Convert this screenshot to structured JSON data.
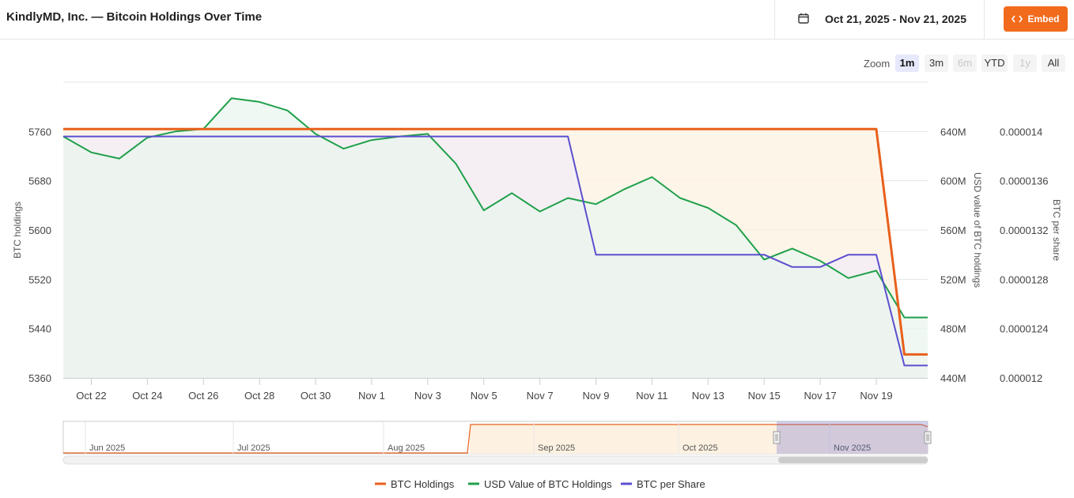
{
  "header": {
    "title": "KindlyMD, Inc. — Bitcoin Holdings Over Time",
    "date_range": "Oct 21, 2025 - Nov 21, 2025",
    "embed_label": "Embed",
    "calendar_icon": "calendar-icon",
    "embed_icon": "code-icon",
    "accent_color": "#f26a1b"
  },
  "zoom": {
    "label": "Zoom",
    "buttons": [
      {
        "label": "1m",
        "active": true,
        "disabled": false
      },
      {
        "label": "3m",
        "active": false,
        "disabled": false
      },
      {
        "label": "6m",
        "active": false,
        "disabled": true
      },
      {
        "label": "YTD",
        "active": false,
        "disabled": false
      },
      {
        "label": "1y",
        "active": false,
        "disabled": true
      },
      {
        "label": "All",
        "active": false,
        "disabled": false
      }
    ]
  },
  "chart_data": {
    "type": "line",
    "x": [
      "Oct 21",
      "Oct 22",
      "Oct 23",
      "Oct 24",
      "Oct 25",
      "Oct 26",
      "Oct 27",
      "Oct 28",
      "Oct 29",
      "Oct 30",
      "Oct 31",
      "Nov 1",
      "Nov 2",
      "Nov 3",
      "Nov 4",
      "Nov 5",
      "Nov 6",
      "Nov 7",
      "Nov 8",
      "Nov 9",
      "Nov 10",
      "Nov 11",
      "Nov 12",
      "Nov 13",
      "Nov 14",
      "Nov 15",
      "Nov 16",
      "Nov 17",
      "Nov 18",
      "Nov 19",
      "Nov 20",
      "Nov 21"
    ],
    "x_ticks": [
      "Oct 22",
      "Oct 24",
      "Oct 26",
      "Oct 28",
      "Oct 30",
      "Nov 1",
      "Nov 3",
      "Nov 5",
      "Nov 7",
      "Nov 9",
      "Nov 11",
      "Nov 13",
      "Nov 15",
      "Nov 17",
      "Nov 19"
    ],
    "series": [
      {
        "name": "BTC Holdings",
        "axis": "left",
        "color": "#e8601c",
        "fill": "#fdf1e1",
        "values": [
          5764,
          5764,
          5764,
          5764,
          5764,
          5764,
          5764,
          5764,
          5764,
          5764,
          5764,
          5764,
          5764,
          5764,
          5764,
          5764,
          5764,
          5764,
          5764,
          5764,
          5764,
          5764,
          5764,
          5764,
          5764,
          5764,
          5764,
          5764,
          5764,
          5764,
          5398,
          5398
        ]
      },
      {
        "name": "USD Value of BTC Holdings",
        "axis": "right1",
        "color": "#1fa04a",
        "fill": "#e9f6ee",
        "values": [
          636,
          623,
          618,
          635,
          640,
          642,
          667,
          664,
          657,
          638,
          626,
          633,
          636,
          638,
          614,
          576,
          590,
          575,
          586,
          581,
          593,
          603,
          586,
          578,
          564,
          536,
          545,
          535,
          521,
          527,
          489,
          489
        ]
      },
      {
        "name": "BTC per Share",
        "axis": "right2",
        "color": "#5b4fcf",
        "fill": "#f2ecf7",
        "values": [
          1.396e-05,
          1.396e-05,
          1.396e-05,
          1.396e-05,
          1.396e-05,
          1.396e-05,
          1.396e-05,
          1.396e-05,
          1.396e-05,
          1.396e-05,
          1.396e-05,
          1.396e-05,
          1.396e-05,
          1.396e-05,
          1.396e-05,
          1.396e-05,
          1.396e-05,
          1.396e-05,
          1.396e-05,
          1.3e-05,
          1.3e-05,
          1.3e-05,
          1.3e-05,
          1.3e-05,
          1.3e-05,
          1.3e-05,
          1.29e-05,
          1.29e-05,
          1.3e-05,
          1.3e-05,
          1.21e-05,
          1.21e-05
        ]
      }
    ],
    "y_left": {
      "label": "BTC holdings",
      "ticks": [
        "5360",
        "5440",
        "5520",
        "5600",
        "5680",
        "5760"
      ],
      "range": [
        5360,
        5840
      ]
    },
    "y_right1": {
      "label": "USD value of BTC holdings",
      "ticks": [
        "440M",
        "480M",
        "520M",
        "560M",
        "600M",
        "640M"
      ],
      "range": [
        440,
        680
      ]
    },
    "y_right2": {
      "label": "BTC per share",
      "ticks": [
        "0.000012",
        "0.0000124",
        "0.0000128",
        "0.0000132",
        "0.0000136",
        "0.000014"
      ],
      "range": [
        1.2e-05,
        1.44e-05
      ]
    },
    "navigator": {
      "labels": [
        "Jun 2025",
        "Jul 2025",
        "Aug 2025",
        "Sep 2025",
        "Oct 2025",
        "Nov 2025"
      ]
    },
    "legend_position": "bottom-center",
    "grid": true
  }
}
